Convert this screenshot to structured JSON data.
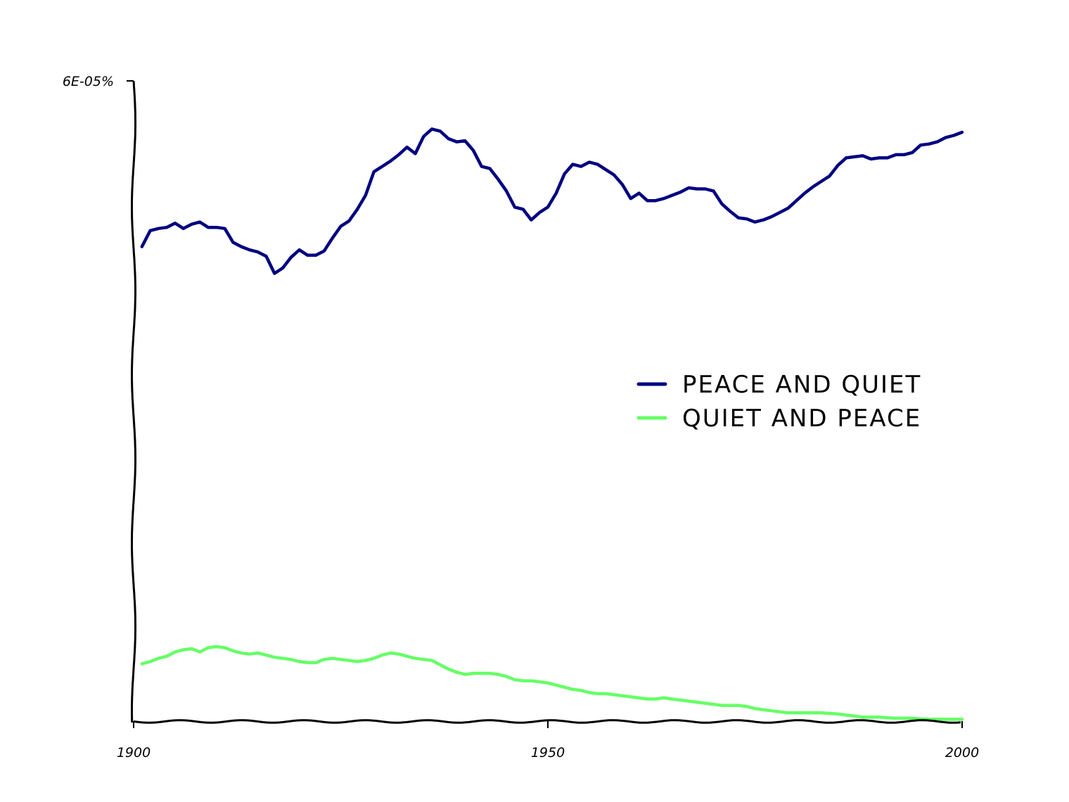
{
  "chart_data": {
    "type": "line",
    "title": "",
    "xlabel": "",
    "ylabel": "",
    "xlim": [
      1900,
      2000
    ],
    "ylim": [
      0,
      6e-05
    ],
    "x_ticks": [
      {
        "value": 1900,
        "label": "1900"
      },
      {
        "value": 1950,
        "label": "1950"
      },
      {
        "value": 2000,
        "label": "2000"
      }
    ],
    "y_ticks": [
      {
        "value": 6e-05,
        "label": "6E-05%"
      }
    ],
    "legend_position": "center-right",
    "series": [
      {
        "name": "PEACE AND QUIET",
        "color": "#000080",
        "x": [
          1901,
          1902,
          1903,
          1904,
          1905,
          1906,
          1907,
          1908,
          1909,
          1910,
          1911,
          1912,
          1913,
          1914,
          1915,
          1916,
          1917,
          1918,
          1919,
          1920,
          1921,
          1922,
          1923,
          1924,
          1925,
          1926,
          1927,
          1928,
          1929,
          1930,
          1931,
          1932,
          1933,
          1934,
          1935,
          1936,
          1937,
          1938,
          1939,
          1940,
          1941,
          1942,
          1943,
          1944,
          1945,
          1946,
          1947,
          1948,
          1949,
          1950,
          1951,
          1952,
          1953,
          1954,
          1955,
          1956,
          1957,
          1958,
          1959,
          1960,
          1961,
          1962,
          1963,
          1964,
          1965,
          1966,
          1967,
          1968,
          1969,
          1970,
          1971,
          1972,
          1973,
          1974,
          1975,
          1976,
          1977,
          1978,
          1979,
          1980,
          1981,
          1982,
          1983,
          1984,
          1985,
          1986,
          1987,
          1988,
          1989,
          1990,
          1991,
          1992,
          1993,
          1994,
          1995,
          1996,
          1997,
          1998,
          1999,
          2000
        ],
        "values": [
          4.45e-05,
          4.6e-05,
          4.62e-05,
          4.63e-05,
          4.67e-05,
          4.62e-05,
          4.66e-05,
          4.68e-05,
          4.63e-05,
          4.63e-05,
          4.62e-05,
          4.49e-05,
          4.45e-05,
          4.42e-05,
          4.4e-05,
          4.36e-05,
          4.2e-05,
          4.25e-05,
          4.35e-05,
          4.42e-05,
          4.37e-05,
          4.37e-05,
          4.41e-05,
          4.53e-05,
          4.64e-05,
          4.69e-05,
          4.8e-05,
          4.93e-05,
          5.15e-05,
          5.2e-05,
          5.25e-05,
          5.31e-05,
          5.38e-05,
          5.32e-05,
          5.48e-05,
          5.55e-05,
          5.53e-05,
          5.46e-05,
          5.43e-05,
          5.44e-05,
          5.35e-05,
          5.2e-05,
          5.18e-05,
          5.08e-05,
          4.97e-05,
          4.82e-05,
          4.8e-05,
          4.7e-05,
          4.77e-05,
          4.82e-05,
          4.95e-05,
          5.13e-05,
          5.22e-05,
          5.2e-05,
          5.24e-05,
          5.22e-05,
          5.17e-05,
          5.12e-05,
          5.03e-05,
          4.9e-05,
          4.95e-05,
          4.88e-05,
          4.88e-05,
          4.9e-05,
          4.93e-05,
          4.96e-05,
          5e-05,
          4.99e-05,
          4.99e-05,
          4.97e-05,
          4.85e-05,
          4.78e-05,
          4.72e-05,
          4.71e-05,
          4.68e-05,
          4.7e-05,
          4.73e-05,
          4.77e-05,
          4.81e-05,
          4.88e-05,
          4.95e-05,
          5.01e-05,
          5.06e-05,
          5.11e-05,
          5.21e-05,
          5.28e-05,
          5.29e-05,
          5.3e-05,
          5.27e-05,
          5.28e-05,
          5.28e-05,
          5.31e-05,
          5.31e-05,
          5.33e-05,
          5.4e-05,
          5.41e-05,
          5.43e-05,
          5.47e-05,
          5.49e-05,
          5.52e-05
        ]
      },
      {
        "name": "QUIET AND PEACE",
        "color": "#66ff66",
        "x": [
          1901,
          1902,
          1903,
          1904,
          1905,
          1906,
          1907,
          1908,
          1909,
          1910,
          1911,
          1912,
          1913,
          1914,
          1915,
          1916,
          1917,
          1918,
          1919,
          1920,
          1921,
          1922,
          1923,
          1924,
          1925,
          1926,
          1927,
          1928,
          1929,
          1930,
          1931,
          1932,
          1933,
          1934,
          1935,
          1936,
          1937,
          1938,
          1939,
          1940,
          1941,
          1942,
          1943,
          1944,
          1945,
          1946,
          1947,
          1948,
          1949,
          1950,
          1951,
          1952,
          1953,
          1954,
          1955,
          1956,
          1957,
          1958,
          1959,
          1960,
          1961,
          1962,
          1963,
          1964,
          1965,
          1966,
          1967,
          1968,
          1969,
          1970,
          1971,
          1972,
          1973,
          1974,
          1975,
          1976,
          1977,
          1978,
          1979,
          1980,
          1981,
          1982,
          1983,
          1984,
          1985,
          1986,
          1987,
          1988,
          1989,
          1990,
          1991,
          1992,
          1993,
          1994,
          1995,
          1996,
          1997,
          1998,
          1999,
          2000
        ],
        "values": [
          5.5e-06,
          5.7e-06,
          6e-06,
          6.2e-06,
          6.6e-06,
          6.8e-06,
          6.9e-06,
          6.6e-06,
          7e-06,
          7.1e-06,
          7e-06,
          6.7e-06,
          6.5e-06,
          6.4e-06,
          6.5e-06,
          6.3e-06,
          6.1e-06,
          6e-06,
          5.9e-06,
          5.7e-06,
          5.6e-06,
          5.6e-06,
          5.9e-06,
          6e-06,
          5.9e-06,
          5.8e-06,
          5.7e-06,
          5.8e-06,
          6e-06,
          6.3e-06,
          6.5e-06,
          6.4e-06,
          6.2e-06,
          6e-06,
          5.9e-06,
          5.8e-06,
          5.4e-06,
          5e-06,
          4.7e-06,
          4.5e-06,
          4.6e-06,
          4.6e-06,
          4.6e-06,
          4.5e-06,
          4.3e-06,
          4e-06,
          3.9e-06,
          3.9e-06,
          3.8e-06,
          3.7e-06,
          3.5e-06,
          3.3e-06,
          3.1e-06,
          3e-06,
          2.8e-06,
          2.7e-06,
          2.7e-06,
          2.6e-06,
          2.5e-06,
          2.4e-06,
          2.3e-06,
          2.2e-06,
          2.2e-06,
          2.3e-06,
          2.2e-06,
          2.1e-06,
          2e-06,
          1.9e-06,
          1.8e-06,
          1.7e-06,
          1.6e-06,
          1.6e-06,
          1.6e-06,
          1.5e-06,
          1.3e-06,
          1.2e-06,
          1.1e-06,
          1e-06,
          9e-07,
          9e-07,
          9e-07,
          9e-07,
          9e-07,
          8.5e-07,
          8e-07,
          7e-07,
          6e-07,
          5e-07,
          5e-07,
          5e-07,
          4.5e-07,
          4e-07,
          4e-07,
          4e-07,
          3.5e-07,
          3e-07,
          3e-07,
          3e-07,
          3e-07,
          3e-07
        ]
      }
    ]
  }
}
